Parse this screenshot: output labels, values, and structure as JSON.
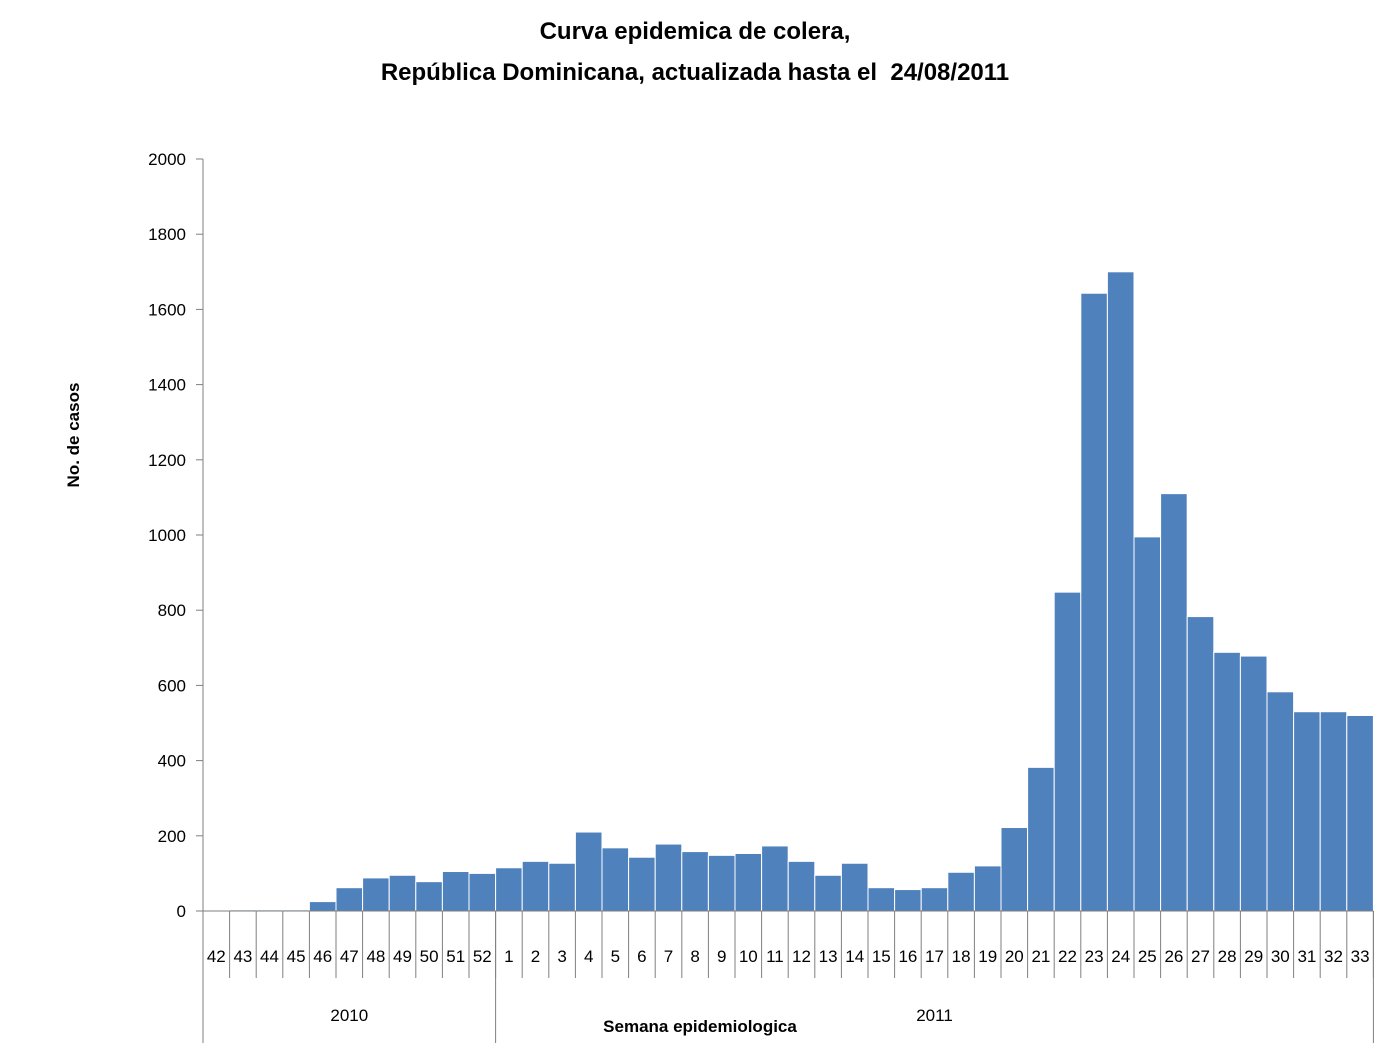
{
  "chart_data": {
    "type": "bar",
    "title_line1": "Curva epidemica de colera,",
    "title_line2": "República Dominicana, actualizada hasta el  24/08/2011",
    "xlabel": "Semana epidemiologica",
    "ylabel": "No. de casos",
    "ylim": [
      0,
      2000
    ],
    "yticks": [
      0,
      200,
      400,
      600,
      800,
      1000,
      1200,
      1400,
      1600,
      1800,
      2000
    ],
    "grid": false,
    "legend": "none",
    "bar_color": "#4f81bd",
    "categories": [
      "42",
      "43",
      "44",
      "45",
      "46",
      "47",
      "48",
      "49",
      "50",
      "51",
      "52",
      "1",
      "2",
      "3",
      "4",
      "5",
      "6",
      "7",
      "8",
      "9",
      "10",
      "11",
      "12",
      "13",
      "14",
      "15",
      "16",
      "17",
      "18",
      "19",
      "20",
      "21",
      "22",
      "23",
      "24",
      "25",
      "26",
      "27",
      "28",
      "29",
      "30",
      "31",
      "32",
      "33"
    ],
    "values": [
      2,
      3,
      3,
      3,
      25,
      62,
      88,
      95,
      78,
      105,
      100,
      115,
      132,
      127,
      210,
      168,
      143,
      178,
      158,
      148,
      153,
      173,
      132,
      95,
      127,
      62,
      57,
      62,
      103,
      120,
      222,
      382,
      848,
      1643,
      1700,
      995,
      1110,
      783,
      688,
      678,
      583,
      530,
      530,
      520
    ],
    "groups": [
      {
        "label": "2010",
        "count": 11
      },
      {
        "label": "2011",
        "count": 33
      }
    ]
  }
}
